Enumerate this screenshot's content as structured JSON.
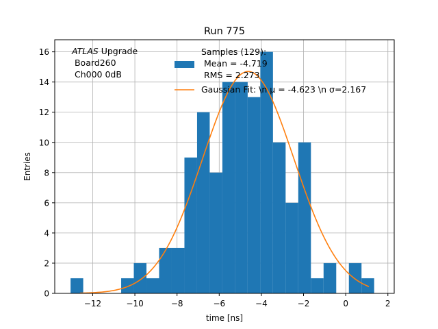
{
  "chart_data": {
    "type": "bar",
    "title": "Run 775",
    "xlabel": "time [ns]",
    "ylabel": "Entries",
    "xlim": [
      -13.8,
      2.3
    ],
    "ylim": [
      0,
      16.8
    ],
    "grid": true,
    "xticks": [
      -12,
      -10,
      -8,
      -6,
      -4,
      -2,
      0,
      2
    ],
    "xtick_labels": [
      "−12",
      "−10",
      "−8",
      "−6",
      "−4",
      "−2",
      "0",
      "2"
    ],
    "yticks": [
      0,
      2,
      4,
      6,
      8,
      10,
      12,
      14,
      16
    ],
    "ytick_labels": [
      "0",
      "2",
      "4",
      "6",
      "8",
      "10",
      "12",
      "14",
      "16"
    ],
    "annotation": {
      "line1_italic": "ATLAS",
      "line1_rest": " Upgrade",
      "line2": " Board260",
      "line3": " Ch000 0dB"
    },
    "legend": {
      "placement": "top-right",
      "histogram_label_lines": [
        "Samples (129):",
        " Mean = -4.719",
        " RMS = 2.273"
      ],
      "fit_label": "Gaussian Fit: \\n μ = -4.623 \\n σ=2.167"
    },
    "histogram": {
      "color": "#1f77b4",
      "bin_edges": [
        -13.05,
        -12.45,
        -11.85,
        -11.25,
        -10.65,
        -10.05,
        -9.45,
        -8.85,
        -8.25,
        -7.65,
        -7.05,
        -6.45,
        -5.85,
        -5.25,
        -4.65,
        -4.05,
        -3.45,
        -2.85,
        -2.25,
        -1.65,
        -1.05,
        -0.45,
        0.15,
        0.75,
        1.35
      ],
      "values": [
        1,
        0,
        0,
        0,
        1,
        2,
        1,
        3,
        3,
        9,
        12,
        8,
        14,
        14,
        13,
        16,
        10,
        6,
        10,
        1,
        2,
        0,
        2,
        1
      ]
    },
    "gaussian_fit": {
      "color": "#ff7f0e",
      "mu": -4.623,
      "sigma": 2.167,
      "amplitude": 14.7,
      "x_range": [
        -12.6,
        1.1
      ]
    }
  }
}
